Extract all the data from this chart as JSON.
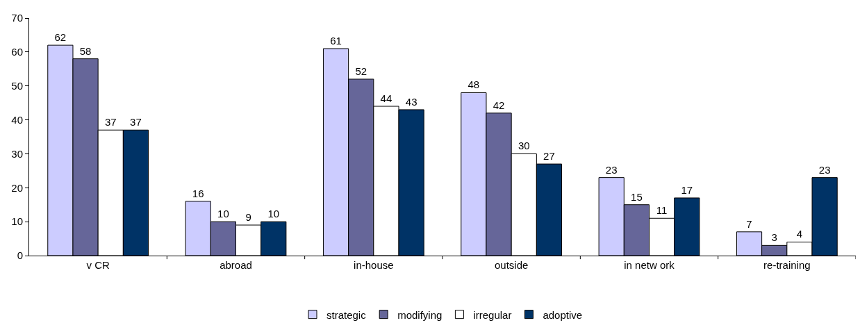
{
  "chart_data": {
    "type": "bar",
    "categories": [
      "v CR",
      "abroad",
      "in-house",
      "outside",
      "in netw ork",
      "re-training"
    ],
    "series": [
      {
        "name": "strategic",
        "color": "#ccccff",
        "values": [
          62,
          16,
          61,
          48,
          23,
          7
        ]
      },
      {
        "name": "modifying",
        "color": "#666699",
        "values": [
          58,
          10,
          52,
          42,
          15,
          3
        ]
      },
      {
        "name": "irregular",
        "color": "#ffffff",
        "values": [
          37,
          9,
          44,
          30,
          11,
          4
        ]
      },
      {
        "name": "adoptive",
        "color": "#003366",
        "values": [
          37,
          10,
          43,
          27,
          17,
          23
        ]
      }
    ],
    "ylim": [
      0,
      70
    ],
    "yticks": [
      0,
      10,
      20,
      30,
      40,
      50,
      60,
      70
    ],
    "grid": false,
    "legend": "bottom",
    "data_labels": true
  }
}
